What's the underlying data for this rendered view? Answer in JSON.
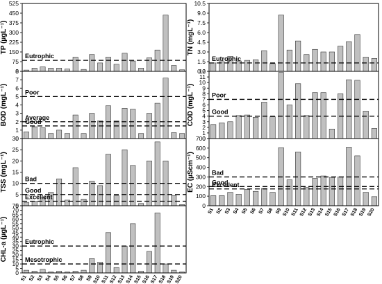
{
  "colors": {
    "bar_fill": "#c0c0c0",
    "bar_stroke": "#333333",
    "threshold": "#000000"
  },
  "sites": [
    "S1",
    "S2",
    "S3",
    "S4",
    "S5",
    "S6",
    "S7",
    "S8",
    "S9",
    "S10",
    "S11",
    "S12",
    "S13",
    "S14",
    "S15",
    "S16",
    "S17",
    "S18",
    "S19",
    "S20"
  ],
  "chart_data": [
    {
      "id": "tp",
      "type": "bar",
      "ylabel": "TP (µgL⁻¹)",
      "ylim": [
        0,
        525
      ],
      "yticks": [
        0,
        75,
        150,
        225,
        300,
        375,
        450,
        525
      ],
      "ytick_labels": [
        "0",
        "75",
        "150",
        "225",
        "300",
        "375",
        "450",
        "525"
      ],
      "values": [
        10,
        25,
        35,
        25,
        25,
        18,
        110,
        15,
        130,
        65,
        110,
        55,
        140,
        80,
        25,
        105,
        165,
        435,
        45,
        12
      ],
      "thresholds": [
        {
          "value": 85,
          "label": "Eutrophic"
        }
      ]
    },
    {
      "id": "tn",
      "type": "bar",
      "ylabel": "TN (mgL⁻¹)",
      "ylim": [
        0,
        10.5
      ],
      "yticks": [
        0,
        1.5,
        3,
        4.5,
        6,
        7.5,
        9,
        10.5
      ],
      "ytick_labels": [
        "0.0",
        "1.5",
        "3.0",
        "4.5",
        "6.0",
        "7.5",
        "9.0",
        "10.5"
      ],
      "values": [
        1.3,
        1.5,
        2.3,
        1.6,
        1.7,
        1.8,
        3.2,
        1.2,
        8.7,
        3.3,
        4.7,
        2.6,
        3.4,
        3.0,
        3.0,
        3.9,
        4.6,
        5.7,
        2.2,
        2.0
      ],
      "thresholds": [
        {
          "value": 1.3,
          "label": "Eutrophic"
        }
      ]
    },
    {
      "id": "bod",
      "type": "bar",
      "ylabel": "BOD (mgL⁻¹)",
      "ylim": [
        0,
        8
      ],
      "yticks": [
        0,
        1,
        2,
        3,
        4,
        5,
        6,
        7,
        8
      ],
      "ytick_labels": [
        "0",
        "1",
        "2",
        "3",
        "4",
        "5",
        "6",
        "7",
        "8"
      ],
      "values": [
        0.8,
        1.4,
        1.3,
        0.6,
        1.0,
        0.6,
        2.8,
        0.6,
        3.0,
        2.1,
        3.9,
        2.1,
        3.6,
        3.5,
        0.6,
        3.0,
        4.2,
        7.2,
        0.7,
        0.6
      ],
      "thresholds": [
        {
          "value": 5,
          "label": "Poor"
        },
        {
          "value": 2,
          "label": "Average"
        },
        {
          "value": 1.5,
          "label": "Good"
        }
      ]
    },
    {
      "id": "cod",
      "type": "bar",
      "ylabel": "COD (mgL⁻¹)",
      "ylim": [
        0,
        12
      ],
      "yticks": [
        0,
        1,
        2,
        3,
        4,
        5,
        6,
        7,
        8,
        9,
        10,
        11,
        12
      ],
      "ytick_labels": [
        "0",
        "1",
        "2",
        "3",
        "4",
        "5",
        "6",
        "7",
        "8",
        "9",
        "10",
        "11",
        "12"
      ],
      "values": [
        2.5,
        2.8,
        3.0,
        4.1,
        4.2,
        3.8,
        6.5,
        3.9,
        11.8,
        6.0,
        9.8,
        4.1,
        8.2,
        8.2,
        1.7,
        8.0,
        10.5,
        10.4,
        4.9,
        1.8
      ],
      "thresholds": [
        {
          "value": 7,
          "label": "Poor"
        },
        {
          "value": 4,
          "label": "Good"
        }
      ]
    },
    {
      "id": "tss",
      "type": "bar",
      "ylabel": "TSS (mgL⁻¹)",
      "ylim": [
        0,
        30
      ],
      "yticks": [
        0,
        5,
        10,
        15,
        20,
        25,
        30
      ],
      "ytick_labels": [
        "0",
        "5",
        "10",
        "15",
        "20",
        "25",
        "30"
      ],
      "values": [
        1.5,
        2.0,
        3.5,
        6.0,
        12.0,
        2.5,
        17.0,
        3.0,
        11.0,
        9.0,
        23.0,
        4.5,
        25.0,
        18.0,
        1.0,
        20.0,
        28.5,
        20.0,
        4.5,
        0.5
      ],
      "thresholds": [
        {
          "value": 10,
          "label": "Bad"
        },
        {
          "value": 5,
          "label": "Good"
        },
        {
          "value": 2,
          "label": "Excellent"
        }
      ]
    },
    {
      "id": "ec",
      "type": "bar",
      "ylabel": "EC (µScm⁻¹)",
      "ylim": [
        0,
        700
      ],
      "yticks": [
        0,
        100,
        200,
        300,
        400,
        500,
        600,
        700
      ],
      "ytick_labels": [
        "0",
        "100",
        "200",
        "300",
        "400",
        "500",
        "600",
        "700"
      ],
      "values": [
        105,
        105,
        140,
        120,
        170,
        150,
        180,
        140,
        605,
        270,
        560,
        190,
        285,
        310,
        295,
        300,
        610,
        520,
        140,
        95
      ],
      "thresholds": [
        {
          "value": 300,
          "label": "Bad"
        },
        {
          "value": 200,
          "label": "Good"
        },
        {
          "value": 175,
          "label": "Excellent"
        }
      ]
    },
    {
      "id": "chla",
      "type": "bar",
      "ylabel": "CHL-a (µgL⁻¹)",
      "ylim": [
        0,
        75
      ],
      "yticks": [
        0,
        5,
        10,
        15,
        20,
        25,
        30,
        35,
        40,
        45,
        50,
        55,
        60,
        65,
        70,
        75
      ],
      "ytick_labels": [
        "0",
        "5",
        "10",
        "15",
        "20",
        "25",
        "30",
        "35",
        "40",
        "45",
        "50",
        "55",
        "60",
        "65",
        "70",
        "75"
      ],
      "values": [
        3,
        2,
        4,
        1,
        2,
        1,
        2,
        3,
        16,
        12,
        45,
        6,
        30,
        55,
        2,
        24,
        67,
        10,
        3,
        1
      ],
      "thresholds": [
        {
          "value": 30,
          "label": "Eutrophic"
        },
        {
          "value": 10,
          "label": "Mesotrophic"
        }
      ]
    }
  ]
}
